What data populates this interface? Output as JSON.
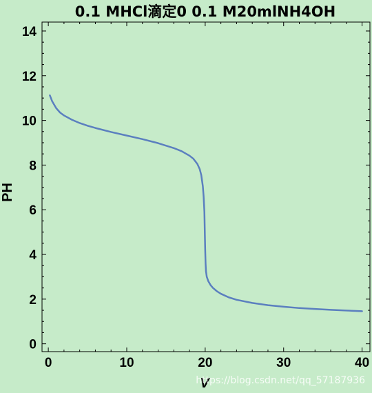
{
  "chart_data": {
    "type": "line",
    "title": "0.1 MHCl滴定0 0.1 M20mlNH4OH",
    "xlabel": "V",
    "ylabel": "PH",
    "xlim": [
      -0.8,
      41
    ],
    "ylim": [
      -0.35,
      14.4
    ],
    "xticks": [
      0,
      10,
      20,
      30,
      40
    ],
    "yticks": [
      0,
      2,
      4,
      6,
      8,
      10,
      12,
      14
    ],
    "grid": false,
    "series": [
      {
        "color": "#5b7fbf",
        "x": [
          0.2,
          0.5,
          1,
          1.5,
          2,
          3,
          4,
          5,
          6,
          8,
          10,
          12,
          14,
          16,
          17,
          18,
          18.5,
          19,
          19.3,
          19.5,
          19.7,
          19.8,
          19.9,
          19.95,
          20,
          20.05,
          20.1,
          20.2,
          20.4,
          20.7,
          21,
          21.5,
          22,
          23,
          24,
          26,
          28,
          30,
          32,
          34,
          36,
          38,
          40
        ],
        "y": [
          11.12,
          10.85,
          10.55,
          10.35,
          10.22,
          10.03,
          9.88,
          9.76,
          9.66,
          9.48,
          9.32,
          9.16,
          8.98,
          8.76,
          8.62,
          8.42,
          8.28,
          8.05,
          7.82,
          7.55,
          7.05,
          6.6,
          5.9,
          5.0,
          4.2,
          3.6,
          3.25,
          3.0,
          2.8,
          2.62,
          2.5,
          2.35,
          2.24,
          2.08,
          1.97,
          1.83,
          1.73,
          1.66,
          1.6,
          1.56,
          1.52,
          1.49,
          1.46
        ]
      }
    ]
  },
  "watermark": "https://blog.csdn.net/qq_57187936",
  "colors": {
    "background": "#c6ebc9",
    "line": "#5b7fbf",
    "axis": "#000000"
  }
}
